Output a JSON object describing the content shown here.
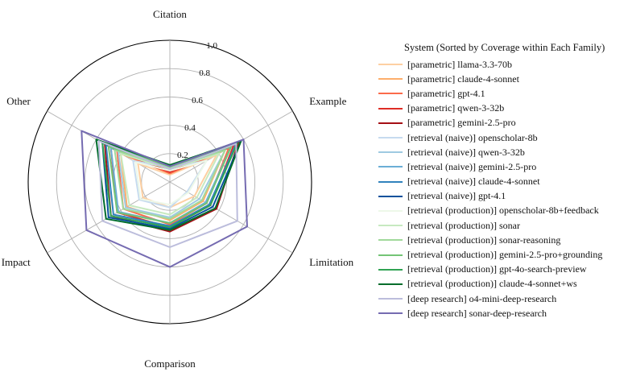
{
  "chart_data": {
    "type": "radar",
    "axes": [
      "Citation",
      "Example",
      "Limitation",
      "Comparison",
      "Impact",
      "Other"
    ],
    "rlim": [
      0,
      1.0
    ],
    "rticks": [
      0.2,
      0.4,
      0.6,
      0.8,
      1.0
    ],
    "rtick_labels": [
      "0.2",
      "0.4",
      "0.6",
      "0.8",
      "1.0"
    ],
    "legend_title": "System (Sorted by Coverage within Each Family)",
    "legend_position": "right",
    "series": [
      {
        "name": "[parametric] llama-3.3-70b",
        "color": "#fdd0a2",
        "values": [
          0.05,
          0.38,
          0.2,
          0.18,
          0.22,
          0.26
        ]
      },
      {
        "name": "[parametric] claude-4-sonnet",
        "color": "#fdae6b",
        "values": [
          0.06,
          0.45,
          0.27,
          0.27,
          0.35,
          0.4
        ]
      },
      {
        "name": "[parametric] gpt-4.1",
        "color": "#fb6a4a",
        "values": [
          0.06,
          0.48,
          0.3,
          0.3,
          0.38,
          0.43
        ]
      },
      {
        "name": "[parametric] qwen-3-32b",
        "color": "#de2d26",
        "values": [
          0.07,
          0.52,
          0.33,
          0.32,
          0.43,
          0.48
        ]
      },
      {
        "name": "[parametric] gemini-2.5-pro",
        "color": "#a50f15",
        "values": [
          0.08,
          0.56,
          0.38,
          0.35,
          0.48,
          0.53
        ]
      },
      {
        "name": "[retrieval (naive)] openscholar-8b",
        "color": "#c6dbef",
        "values": [
          0.1,
          0.3,
          0.14,
          0.18,
          0.25,
          0.3
        ]
      },
      {
        "name": "[retrieval (naive)] qwen-3-32b",
        "color": "#9ecae1",
        "values": [
          0.09,
          0.45,
          0.24,
          0.25,
          0.36,
          0.42
        ]
      },
      {
        "name": "[retrieval (naive)] gemini-2.5-pro",
        "color": "#6baed6",
        "values": [
          0.1,
          0.5,
          0.29,
          0.29,
          0.42,
          0.48
        ]
      },
      {
        "name": "[retrieval (naive)] claude-4-sonnet",
        "color": "#3182bd",
        "values": [
          0.1,
          0.54,
          0.32,
          0.31,
          0.46,
          0.52
        ]
      },
      {
        "name": "[retrieval (naive)] gpt-4.1",
        "color": "#08519c",
        "values": [
          0.11,
          0.58,
          0.35,
          0.33,
          0.5,
          0.55
        ]
      },
      {
        "name": "[retrieval (production)] openscholar-8b+feedback",
        "color": "#edf8e9",
        "values": [
          0.08,
          0.3,
          0.15,
          0.16,
          0.24,
          0.28
        ]
      },
      {
        "name": "[retrieval (production)] sonar",
        "color": "#c7e9c0",
        "values": [
          0.09,
          0.4,
          0.22,
          0.23,
          0.33,
          0.4
        ]
      },
      {
        "name": "[retrieval (production)] sonar-reasoning",
        "color": "#a1d99b",
        "values": [
          0.1,
          0.45,
          0.26,
          0.26,
          0.38,
          0.45
        ]
      },
      {
        "name": "[retrieval (production)] gemini-2.5-pro+grounding",
        "color": "#74c476",
        "values": [
          0.11,
          0.5,
          0.3,
          0.29,
          0.43,
          0.5
        ]
      },
      {
        "name": "[retrieval (production)] gpt-4o-search-preview",
        "color": "#31a354",
        "values": [
          0.12,
          0.55,
          0.33,
          0.32,
          0.48,
          0.55
        ]
      },
      {
        "name": "[retrieval (production)] claude-4-sonnet+ws",
        "color": "#006d2c",
        "values": [
          0.12,
          0.58,
          0.37,
          0.34,
          0.52,
          0.6
        ]
      },
      {
        "name": "[deep research] o4-mini-deep-research",
        "color": "#bcbddc",
        "values": [
          0.09,
          0.54,
          0.55,
          0.46,
          0.55,
          0.58
        ]
      },
      {
        "name": "[deep research] sonar-deep-research",
        "color": "#756bb1",
        "values": [
          0.11,
          0.6,
          0.63,
          0.6,
          0.68,
          0.72
        ]
      }
    ]
  }
}
